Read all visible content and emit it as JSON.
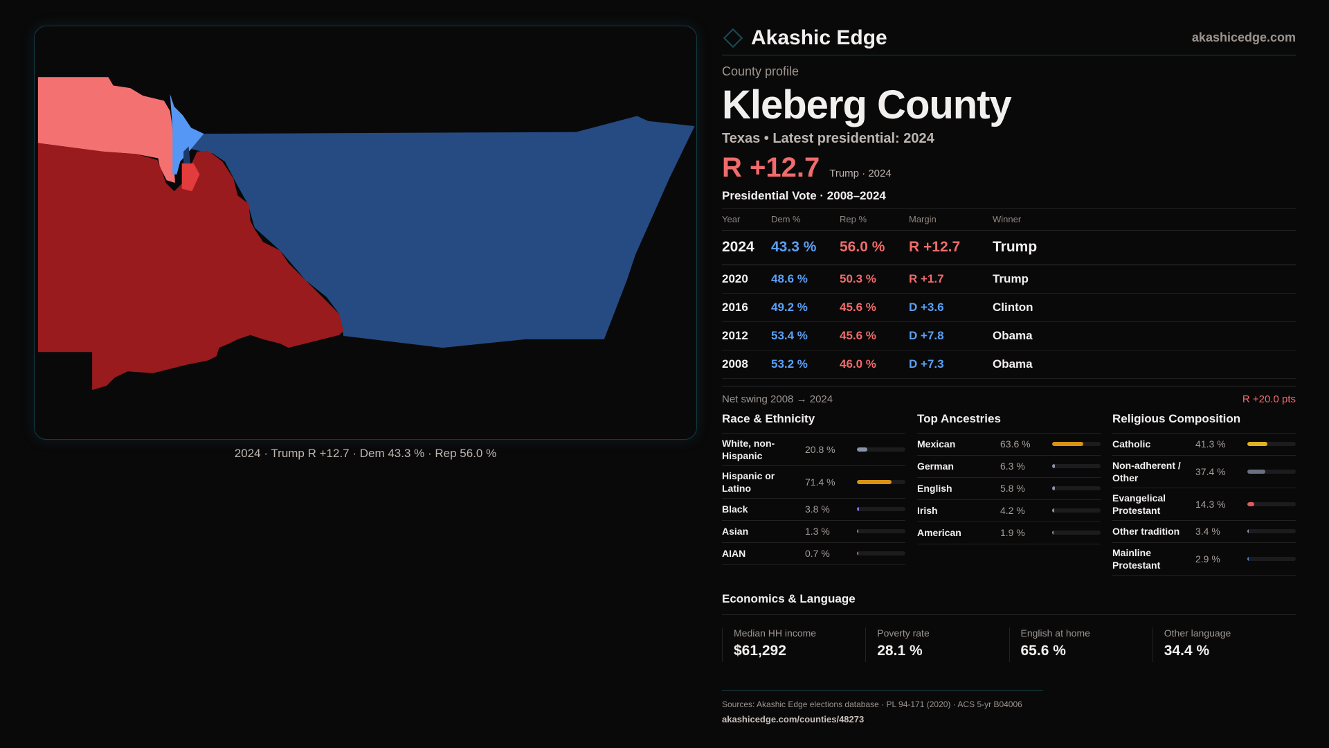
{
  "brand": {
    "name": "Akashic Edge",
    "site": "akashicedge.com"
  },
  "profile": {
    "eyebrow": "County profile",
    "title": "Kleberg County",
    "subtitle": "Texas • Latest presidential: 2024",
    "margin": "R +12.7",
    "margin_label": "Trump · 2024"
  },
  "map": {
    "caption": "2024 · Trump R +12.7 · Dem 43.3 % · Rep 56.0 %",
    "colors": {
      "rep_strong": "#9a1b1d",
      "rep_lean": "#f47171",
      "dem_strong": "#264b82",
      "dem_lean": "#5597f5"
    }
  },
  "votes": {
    "title": "Presidential Vote · 2008–2024",
    "headers": [
      "Year",
      "Dem %",
      "Rep %",
      "Margin",
      "Winner"
    ],
    "rows": [
      {
        "year": "2024",
        "dem": "43.3 %",
        "rep": "56.0 %",
        "margin": "R +12.7",
        "party": "rep",
        "winner": "Trump"
      },
      {
        "year": "2020",
        "dem": "48.6 %",
        "rep": "50.3 %",
        "margin": "R +1.7",
        "party": "rep",
        "winner": "Trump"
      },
      {
        "year": "2016",
        "dem": "49.2 %",
        "rep": "45.6 %",
        "margin": "D +3.6",
        "party": "dem",
        "winner": "Clinton"
      },
      {
        "year": "2012",
        "dem": "53.4 %",
        "rep": "45.6 %",
        "margin": "D +7.8",
        "party": "dem",
        "winner": "Obama"
      },
      {
        "year": "2008",
        "dem": "53.2 %",
        "rep": "46.0 %",
        "margin": "D +7.3",
        "party": "dem",
        "winner": "Obama"
      }
    ]
  },
  "swing": {
    "label": "Net swing 2008 → 2024",
    "value": "R +20.0 pts"
  },
  "demographics": [
    {
      "title": "Race & Ethnicity",
      "items": [
        {
          "name": "White, non-Hispanic",
          "pct": "20.8 %",
          "value": 20.8,
          "color": "#8a93a6"
        },
        {
          "name": "Hispanic or Latino",
          "pct": "71.4 %",
          "value": 71.4,
          "color": "#d99312"
        },
        {
          "name": "Black",
          "pct": "3.8 %",
          "value": 3.8,
          "color": "#8b6fe0"
        },
        {
          "name": "Asian",
          "pct": "1.3 %",
          "value": 1.3,
          "color": "#2fb58a"
        },
        {
          "name": "AIAN",
          "pct": "0.7 %",
          "value": 0.7,
          "color": "#d9731a"
        }
      ]
    },
    {
      "title": "Top Ancestries",
      "items": [
        {
          "name": "Mexican",
          "pct": "63.6 %",
          "value": 63.6,
          "color": "#d99312"
        },
        {
          "name": "German",
          "pct": "6.3 %",
          "value": 6.3,
          "color": "#8a93a6"
        },
        {
          "name": "English",
          "pct": "5.8 %",
          "value": 5.8,
          "color": "#8a93a6"
        },
        {
          "name": "Irish",
          "pct": "4.2 %",
          "value": 4.2,
          "color": "#8a93a6"
        },
        {
          "name": "American",
          "pct": "1.9 %",
          "value": 1.9,
          "color": "#8a93a6"
        }
      ]
    },
    {
      "title": "Religious Composition",
      "items": [
        {
          "name": "Catholic",
          "pct": "41.3 %",
          "value": 41.3,
          "color": "#e0b21f"
        },
        {
          "name": "Non-adherent / Other",
          "pct": "37.4 %",
          "value": 37.4,
          "color": "#6b7080"
        },
        {
          "name": "Evangelical Protestant",
          "pct": "14.3 %",
          "value": 14.3,
          "color": "#e05a5a"
        },
        {
          "name": "Other tradition",
          "pct": "3.4 %",
          "value": 3.4,
          "color": "#8a93a6"
        },
        {
          "name": "Mainline Protestant",
          "pct": "2.9 %",
          "value": 2.9,
          "color": "#4f86e0"
        }
      ]
    }
  ],
  "economics": {
    "title": "Economics & Language",
    "cards": [
      {
        "label": "Median HH income",
        "value": "$61,292"
      },
      {
        "label": "Poverty rate",
        "value": "28.1 %"
      },
      {
        "label": "English at home",
        "value": "65.6 %"
      },
      {
        "label": "Other language",
        "value": "34.4 %"
      }
    ]
  },
  "footer": {
    "sources": "Sources: Akashic Edge elections database · PL 94-171 (2020) · ACS 5-yr B04006",
    "url": "akashicedge.com/counties/48273"
  }
}
